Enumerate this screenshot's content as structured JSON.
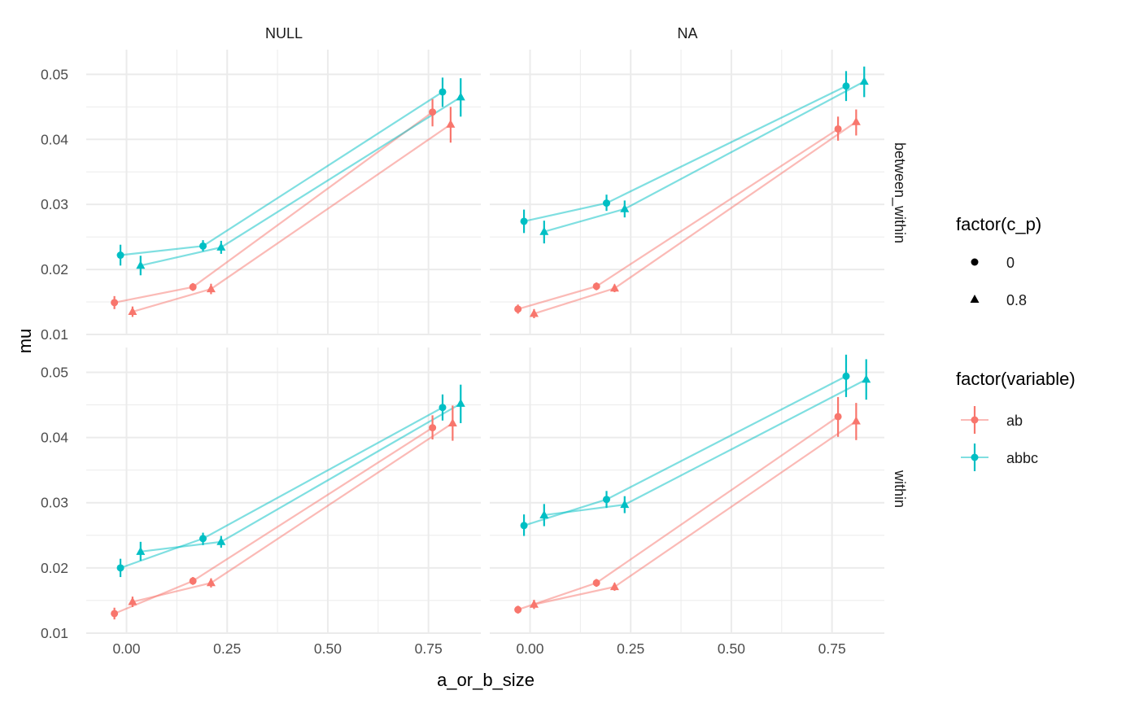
{
  "chart_data": {
    "type": "line",
    "x_label": "a_or_b_size",
    "y_label": "mu",
    "x_ticks": [
      0.0,
      0.25,
      0.5,
      0.75
    ],
    "x_tick_labels": [
      "0.00",
      "0.25",
      "0.50",
      "0.75"
    ],
    "y_ticks": [
      0.01,
      0.02,
      0.03,
      0.04,
      0.05
    ],
    "y_tick_labels": [
      "0.01",
      "0.02",
      "0.03",
      "0.04",
      "0.05"
    ],
    "xlim": [
      -0.1,
      0.88
    ],
    "ylim": [
      0.01,
      0.0538
    ],
    "grid": true,
    "facet_columns": [
      "NULL",
      "NA"
    ],
    "facet_rows": [
      "between_within",
      "within"
    ],
    "legend": {
      "placement": "right",
      "shape_title": "factor(c_p)",
      "shape_items": [
        {
          "label": "0",
          "shape": "circle"
        },
        {
          "label": "0.8",
          "shape": "triangle"
        }
      ],
      "color_title": "factor(variable)",
      "color_items": [
        {
          "label": "ab",
          "color": "#F8766D"
        },
        {
          "label": "abbc",
          "color": "#00BFC4"
        }
      ]
    },
    "colors": {
      "ab": "#F8766D",
      "abbc": "#00BFC4"
    },
    "panels": [
      {
        "column": "NULL",
        "row": "between_within",
        "series": [
          {
            "variable": "ab",
            "c_p": "0",
            "points": [
              {
                "x": -0.03,
                "y": 0.0149,
                "low": 0.0139,
                "high": 0.0159
              },
              {
                "x": 0.165,
                "y": 0.0173,
                "low": 0.0167,
                "high": 0.0179
              },
              {
                "x": 0.76,
                "y": 0.0442,
                "low": 0.042,
                "high": 0.0462
              }
            ]
          },
          {
            "variable": "ab",
            "c_p": "0.8",
            "points": [
              {
                "x": 0.015,
                "y": 0.0135,
                "low": 0.0127,
                "high": 0.0143
              },
              {
                "x": 0.21,
                "y": 0.017,
                "low": 0.0162,
                "high": 0.0178
              },
              {
                "x": 0.805,
                "y": 0.0423,
                "low": 0.0395,
                "high": 0.045
              }
            ]
          },
          {
            "variable": "abbc",
            "c_p": "0",
            "points": [
              {
                "x": -0.015,
                "y": 0.0222,
                "low": 0.0206,
                "high": 0.0238
              },
              {
                "x": 0.19,
                "y": 0.0236,
                "low": 0.0228,
                "high": 0.0245
              },
              {
                "x": 0.785,
                "y": 0.0473,
                "low": 0.045,
                "high": 0.0495
              }
            ]
          },
          {
            "variable": "abbc",
            "c_p": "0.8",
            "points": [
              {
                "x": 0.035,
                "y": 0.0206,
                "low": 0.0191,
                "high": 0.0221
              },
              {
                "x": 0.235,
                "y": 0.0234,
                "low": 0.0224,
                "high": 0.0244
              },
              {
                "x": 0.83,
                "y": 0.0465,
                "low": 0.0435,
                "high": 0.0494
              }
            ]
          }
        ]
      },
      {
        "column": "NA",
        "row": "between_within",
        "series": [
          {
            "variable": "ab",
            "c_p": "0",
            "points": [
              {
                "x": -0.03,
                "y": 0.0139,
                "low": 0.0132,
                "high": 0.0146
              },
              {
                "x": 0.165,
                "y": 0.0174,
                "low": 0.0168,
                "high": 0.018
              },
              {
                "x": 0.765,
                "y": 0.0416,
                "low": 0.0398,
                "high": 0.0435
              }
            ]
          },
          {
            "variable": "ab",
            "c_p": "0.8",
            "points": [
              {
                "x": 0.01,
                "y": 0.0132,
                "low": 0.0125,
                "high": 0.0139
              },
              {
                "x": 0.21,
                "y": 0.0171,
                "low": 0.0165,
                "high": 0.0177
              },
              {
                "x": 0.81,
                "y": 0.0427,
                "low": 0.0406,
                "high": 0.0446
              }
            ]
          },
          {
            "variable": "abbc",
            "c_p": "0",
            "points": [
              {
                "x": -0.015,
                "y": 0.0274,
                "low": 0.0256,
                "high": 0.0292
              },
              {
                "x": 0.19,
                "y": 0.0302,
                "low": 0.029,
                "high": 0.0315
              },
              {
                "x": 0.785,
                "y": 0.0482,
                "low": 0.0459,
                "high": 0.0505
              }
            ]
          },
          {
            "variable": "abbc",
            "c_p": "0.8",
            "points": [
              {
                "x": 0.035,
                "y": 0.0258,
                "low": 0.024,
                "high": 0.0275
              },
              {
                "x": 0.235,
                "y": 0.0293,
                "low": 0.028,
                "high": 0.0306
              },
              {
                "x": 0.83,
                "y": 0.0489,
                "low": 0.0465,
                "high": 0.0512
              }
            ]
          }
        ]
      },
      {
        "column": "NULL",
        "row": "within",
        "series": [
          {
            "variable": "ab",
            "c_p": "0",
            "points": [
              {
                "x": -0.03,
                "y": 0.013,
                "low": 0.0121,
                "high": 0.0139
              },
              {
                "x": 0.165,
                "y": 0.018,
                "low": 0.0174,
                "high": 0.0186
              },
              {
                "x": 0.76,
                "y": 0.0415,
                "low": 0.0397,
                "high": 0.0434
              }
            ]
          },
          {
            "variable": "ab",
            "c_p": "0.8",
            "points": [
              {
                "x": 0.015,
                "y": 0.0148,
                "low": 0.014,
                "high": 0.0156
              },
              {
                "x": 0.21,
                "y": 0.0177,
                "low": 0.017,
                "high": 0.0184
              },
              {
                "x": 0.81,
                "y": 0.0422,
                "low": 0.0395,
                "high": 0.0449
              }
            ]
          },
          {
            "variable": "abbc",
            "c_p": "0",
            "points": [
              {
                "x": -0.015,
                "y": 0.02,
                "low": 0.0186,
                "high": 0.0214
              },
              {
                "x": 0.19,
                "y": 0.0245,
                "low": 0.0235,
                "high": 0.0254
              },
              {
                "x": 0.785,
                "y": 0.0446,
                "low": 0.0426,
                "high": 0.0466
              }
            ]
          },
          {
            "variable": "abbc",
            "c_p": "0.8",
            "points": [
              {
                "x": 0.035,
                "y": 0.0225,
                "low": 0.0211,
                "high": 0.024
              },
              {
                "x": 0.235,
                "y": 0.024,
                "low": 0.0231,
                "high": 0.0249
              },
              {
                "x": 0.83,
                "y": 0.0452,
                "low": 0.0422,
                "high": 0.0481
              }
            ]
          }
        ]
      },
      {
        "column": "NA",
        "row": "within",
        "series": [
          {
            "variable": "ab",
            "c_p": "0",
            "points": [
              {
                "x": -0.03,
                "y": 0.0136,
                "low": 0.013,
                "high": 0.0142
              },
              {
                "x": 0.165,
                "y": 0.0177,
                "low": 0.0171,
                "high": 0.0183
              },
              {
                "x": 0.765,
                "y": 0.0432,
                "low": 0.0401,
                "high": 0.0462
              }
            ]
          },
          {
            "variable": "ab",
            "c_p": "0.8",
            "points": [
              {
                "x": 0.01,
                "y": 0.0144,
                "low": 0.0137,
                "high": 0.0151
              },
              {
                "x": 0.21,
                "y": 0.0171,
                "low": 0.0165,
                "high": 0.0177
              },
              {
                "x": 0.81,
                "y": 0.0425,
                "low": 0.0396,
                "high": 0.0453
              }
            ]
          },
          {
            "variable": "abbc",
            "c_p": "0",
            "points": [
              {
                "x": -0.015,
                "y": 0.0265,
                "low": 0.0249,
                "high": 0.0282
              },
              {
                "x": 0.19,
                "y": 0.0305,
                "low": 0.0292,
                "high": 0.0318
              },
              {
                "x": 0.785,
                "y": 0.0494,
                "low": 0.0462,
                "high": 0.0527
              }
            ]
          },
          {
            "variable": "abbc",
            "c_p": "0.8",
            "points": [
              {
                "x": 0.035,
                "y": 0.0281,
                "low": 0.0264,
                "high": 0.0298
              },
              {
                "x": 0.235,
                "y": 0.0297,
                "low": 0.0284,
                "high": 0.031
              },
              {
                "x": 0.835,
                "y": 0.0489,
                "low": 0.0458,
                "high": 0.052
              }
            ]
          }
        ]
      }
    ]
  }
}
